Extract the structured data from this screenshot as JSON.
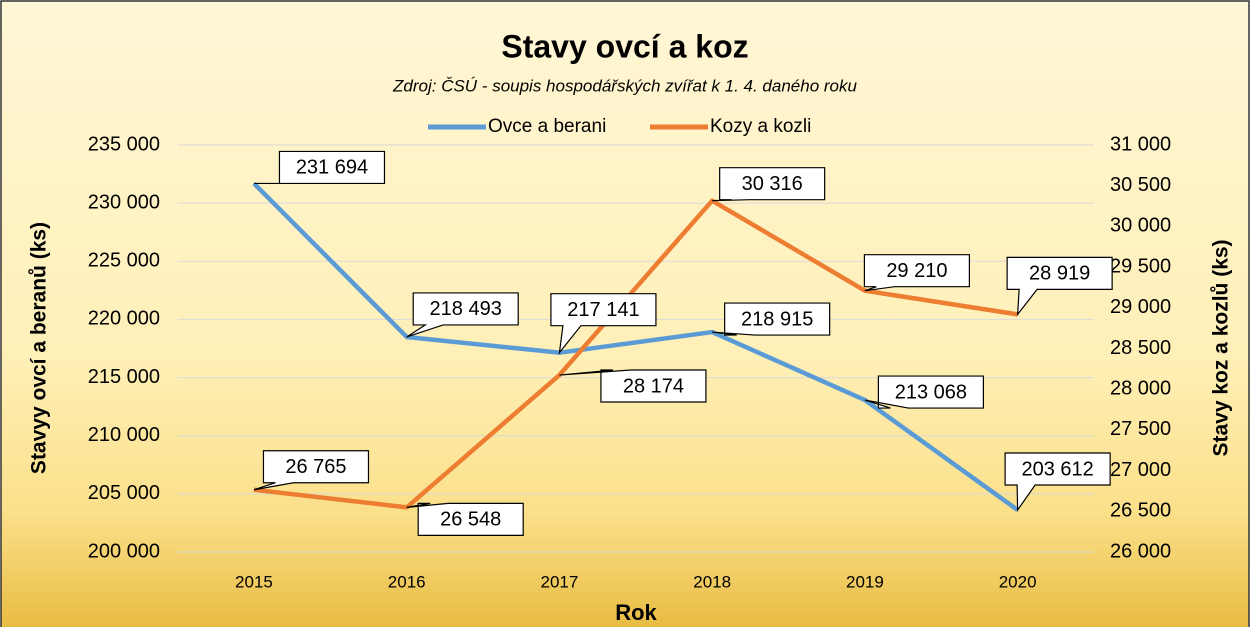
{
  "chart_data": {
    "type": "line",
    "title": "Stavy ovcí a koz",
    "subtitle": "Zdroj: ČSÚ - soupis hospodářských zvířat k 1. 4. daného roku",
    "x_label": "Rok",
    "y_label": "Stavyy ovcí a beranů (ks)",
    "y2_label": "Stavy koz a kozlů (ks)",
    "categories": [
      "2015",
      "2016",
      "2017",
      "2018",
      "2019",
      "2020"
    ],
    "series": [
      {
        "name": "Ovce a berani",
        "color": "#5b9bd5",
        "values": [
          231694,
          218493,
          217141,
          218915,
          213068,
          203612
        ],
        "value_labels": [
          "231 694",
          "218 493",
          "217 141",
          "218 915",
          "213 068",
          "203 612"
        ]
      },
      {
        "name": "Kozy a kozli",
        "color": "#ed7d31",
        "axis": "y2",
        "values": [
          26765,
          26548,
          28174,
          30316,
          29210,
          28919
        ],
        "value_labels": [
          "26 765",
          "26 548",
          "28 174",
          "30 316",
          "29 210",
          "28 919"
        ]
      }
    ],
    "ylim": [
      200000,
      235000
    ],
    "yticks": [
      {
        "value": 200000,
        "label": "200 000"
      },
      {
        "value": 205000,
        "label": "205 000"
      },
      {
        "value": 210000,
        "label": "210 000"
      },
      {
        "value": 215000,
        "label": "215 000"
      },
      {
        "value": 220000,
        "label": "220 000"
      },
      {
        "value": 225000,
        "label": "225 000"
      },
      {
        "value": 230000,
        "label": "230 000"
      },
      {
        "value": 235000,
        "label": "235 000"
      }
    ],
    "y2lim": [
      26000,
      31000
    ],
    "y2ticks": [
      {
        "value": 26000,
        "label": "26 000"
      },
      {
        "value": 26500,
        "label": "26 500"
      },
      {
        "value": 27000,
        "label": "27 000"
      },
      {
        "value": 27500,
        "label": "27 500"
      },
      {
        "value": 28000,
        "label": "28 000"
      },
      {
        "value": 28500,
        "label": "28 500"
      },
      {
        "value": 29000,
        "label": "29 000"
      },
      {
        "value": 29500,
        "label": "29 500"
      },
      {
        "value": 30000,
        "label": "30 000"
      },
      {
        "value": 30500,
        "label": "30 500"
      },
      {
        "value": 31000,
        "label": "31 000"
      }
    ],
    "grid": true,
    "legend": "top"
  }
}
